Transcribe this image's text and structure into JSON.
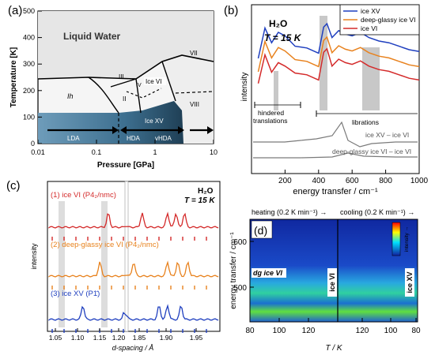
{
  "colors": {
    "blue": "#1f3fbf",
    "orange": "#e8821e",
    "red": "#d42a2a",
    "gray": "#7a7a7a",
    "shade": "#c8c8c8"
  },
  "panel_a": {
    "label": "(a)",
    "ylabel": "Temperature [K]",
    "xlabel": "Pressure [GPa]",
    "yticks": [
      "0",
      "100",
      "200",
      "300",
      "400",
      "500"
    ],
    "xticks": [
      "0.01",
      "0.1",
      "1",
      "10"
    ],
    "regions": {
      "liquid": "Liquid Water",
      "ih": "Ih",
      "ii": "II",
      "iii": "III",
      "v": "V",
      "vi": "Ice VI",
      "vii": "VII",
      "viii": "VIII",
      "xv": "Ice XV"
    },
    "arrows": {
      "lda": "LDA",
      "hda": "HDA",
      "vhda": "vHDA"
    }
  },
  "panel_b": {
    "label": "(b)",
    "title": "H₂O",
    "temp": "T = 15 K",
    "ylabel": "intensity",
    "xlabel": "energy transfer / cm⁻¹",
    "xticks": [
      "200",
      "400",
      "600",
      "800",
      "1000"
    ],
    "legend": [
      "ice XV",
      "deep-glassy ice VI",
      "ice VI"
    ],
    "annot_hindered": "hindered",
    "annot_translations": "translations",
    "annot_librations": "librations",
    "diff1": "ice XV – ice VI",
    "diff2": "deep-glassy ice VI – ice VI"
  },
  "panel_c": {
    "label": "(c)",
    "title": "H₂O",
    "temp": "T = 15 K",
    "ylabel": "intensity",
    "xlabel": "d-spacing / Å",
    "xticks": [
      "1.05",
      "1.10",
      "1.15",
      "1.20",
      "1.85",
      "1.90",
      "1.95"
    ],
    "series": [
      "(1) ice VI (P4₂/nmc)",
      "(2) deep-glassy ice VI (P4₂/nmc)",
      "(3) ice XV (P1̄)"
    ]
  },
  "panel_d": {
    "label": "(d)",
    "heating": "heating (0.2 K min⁻¹) →",
    "cooling": "cooling (0.2 K min⁻¹) →",
    "ylabel": "energy transfer / cm⁻¹",
    "xlabel": "T / K",
    "yticks": [
      "500",
      "600"
    ],
    "xticks": [
      "80",
      "100",
      "120",
      "120",
      "100",
      "80"
    ],
    "tag_dg": "dg ice VI",
    "tag_vi": "ice VI",
    "tag_xv": "ice XV",
    "scale": "intensity →"
  },
  "chart_data": [
    {
      "type": "area",
      "title": "",
      "xlabel": "Pressure [GPa]",
      "ylabel": "Temperature [K]",
      "xscale": "log",
      "xlim": [
        0.01,
        10
      ],
      "ylim": [
        0,
        500
      ],
      "phases": [
        "Liquid Water",
        "Ih",
        "II",
        "III",
        "V",
        "Ice VI",
        "VII",
        "VIII",
        "Ice XV"
      ]
    },
    {
      "type": "line",
      "title": "H₂O",
      "xlabel": "energy transfer / cm⁻¹",
      "ylabel": "intensity",
      "xlim": [
        0,
        1000
      ],
      "series": [
        {
          "name": "ice XV",
          "x": [
            40,
            80,
            120,
            160,
            200,
            260,
            330,
            400,
            430,
            450,
            480,
            520,
            560,
            600,
            650,
            700,
            760,
            820,
            880,
            940,
            1000
          ],
          "y": [
            0.6,
            0.95,
            0.78,
            0.9,
            0.86,
            0.74,
            0.72,
            0.66,
            0.96,
            1.0,
            0.84,
            0.92,
            0.88,
            0.86,
            0.9,
            0.84,
            0.8,
            0.78,
            0.74,
            0.7,
            0.68
          ]
        },
        {
          "name": "deep-glassy ice VI",
          "x": [
            40,
            80,
            120,
            160,
            200,
            260,
            330,
            400,
            430,
            450,
            480,
            520,
            560,
            600,
            650,
            700,
            760,
            820,
            880,
            940,
            1000
          ],
          "y": [
            0.5,
            0.85,
            0.66,
            0.78,
            0.74,
            0.64,
            0.62,
            0.56,
            0.86,
            0.9,
            0.72,
            0.8,
            0.76,
            0.74,
            0.78,
            0.72,
            0.68,
            0.66,
            0.62,
            0.58,
            0.56
          ]
        },
        {
          "name": "ice VI",
          "x": [
            40,
            80,
            120,
            160,
            200,
            260,
            330,
            400,
            430,
            450,
            480,
            520,
            560,
            600,
            650,
            700,
            760,
            820,
            880,
            940,
            1000
          ],
          "y": [
            0.42,
            0.75,
            0.55,
            0.66,
            0.62,
            0.54,
            0.52,
            0.46,
            0.78,
            0.82,
            0.62,
            0.7,
            0.66,
            0.64,
            0.68,
            0.62,
            0.58,
            0.56,
            0.52,
            0.48,
            0.46
          ]
        }
      ]
    },
    {
      "type": "line",
      "xlabel": "d-spacing / Å",
      "ylabel": "intensity",
      "series": [
        {
          "name": "(1) ice VI (P4₂/nmc)"
        },
        {
          "name": "(2) deep-glassy ice VI (P4₂/nmc)"
        },
        {
          "name": "(3) ice XV (P1̄)"
        }
      ]
    },
    {
      "type": "heatmap",
      "xlabel": "T / K",
      "ylabel": "energy transfer / cm⁻¹",
      "ylim": [
        420,
        650
      ]
    }
  ]
}
